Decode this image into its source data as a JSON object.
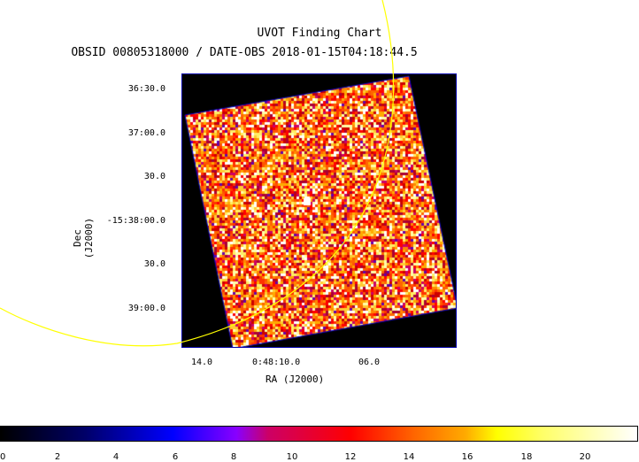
{
  "title": "UVOT Finding Chart",
  "subtitle": "OBSID 00805318000 / DATE-OBS 2018-01-15T04:18:44.5",
  "y_axis": {
    "label": "Dec (J2000)",
    "ticks": [
      "36:30.0",
      "37:00.0",
      "30.0",
      "-15:38:00.0",
      "30.0",
      "39:00.0"
    ]
  },
  "x_axis": {
    "label": "RA (J2000)",
    "ticks": [
      "14.0",
      "0:48:10.0",
      "06.0"
    ]
  },
  "colorbar": {
    "ticks": [
      "0",
      "2",
      "4",
      "6",
      "8",
      "10",
      "12",
      "14",
      "16",
      "18",
      "20"
    ]
  },
  "colors": {
    "frame": "#0000aa",
    "circle": "#ffff00"
  }
}
